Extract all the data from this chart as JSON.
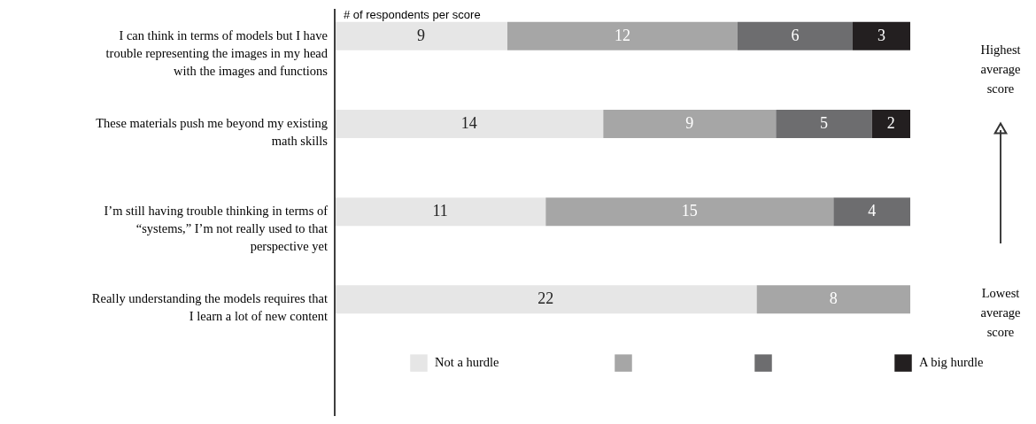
{
  "chart_data": {
    "type": "bar",
    "orientation": "horizontal",
    "stacked": true,
    "data_labels": true,
    "subtitle": "# of respondents per score",
    "categories": [
      "I can think in terms of models but I have trouble representing the images in my head with the images and functions",
      "These materials push me beyond my existing math skills",
      "I’m still having trouble thinking in terms of “systems,” I’m not really used to that perspective yet",
      "Really understanding the models requires that I learn a lot of new content"
    ],
    "series": [
      {
        "name": "Not a hurdle",
        "color": "#e6e6e6",
        "values": [
          9,
          14,
          11,
          22
        ]
      },
      {
        "color": "#a6a6a6",
        "values": [
          12,
          9,
          15,
          8
        ]
      },
      {
        "color": "#6d6d6f",
        "values": [
          6,
          5,
          4,
          null
        ]
      },
      {
        "name": "A big hurdle",
        "color": "#231f20",
        "values": [
          3,
          2,
          null,
          null
        ]
      }
    ],
    "legend": "bottom",
    "annotations": [
      "Highest average score",
      "Lowest average score"
    ]
  }
}
